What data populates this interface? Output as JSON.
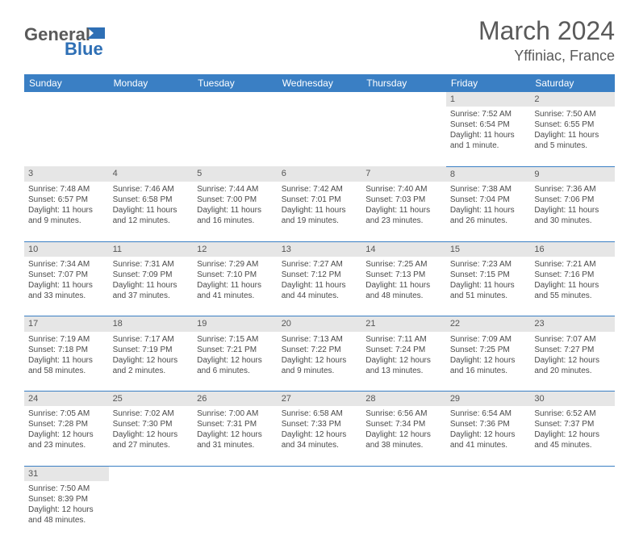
{
  "brand": {
    "word1": "General",
    "word2": "Blue",
    "color1": "#5a5a5a",
    "color2": "#2e6fb5"
  },
  "title": "March 2024",
  "location": "Yffiniac, France",
  "header_bg": "#3a7fc4",
  "cell_divider": "#3a7fc4",
  "daynum_bg": "#e6e6e6",
  "text_color": "#4a4a4a",
  "font_size_title": 32,
  "font_size_location": 18,
  "font_size_header": 12,
  "font_size_cell": 10,
  "days": [
    "Sunday",
    "Monday",
    "Tuesday",
    "Wednesday",
    "Thursday",
    "Friday",
    "Saturday"
  ],
  "weeks": [
    [
      null,
      null,
      null,
      null,
      null,
      {
        "n": "1",
        "sr": "7:52 AM",
        "ss": "6:54 PM",
        "dl": "11 hours and 1 minute."
      },
      {
        "n": "2",
        "sr": "7:50 AM",
        "ss": "6:55 PM",
        "dl": "11 hours and 5 minutes."
      }
    ],
    [
      {
        "n": "3",
        "sr": "7:48 AM",
        "ss": "6:57 PM",
        "dl": "11 hours and 9 minutes."
      },
      {
        "n": "4",
        "sr": "7:46 AM",
        "ss": "6:58 PM",
        "dl": "11 hours and 12 minutes."
      },
      {
        "n": "5",
        "sr": "7:44 AM",
        "ss": "7:00 PM",
        "dl": "11 hours and 16 minutes."
      },
      {
        "n": "6",
        "sr": "7:42 AM",
        "ss": "7:01 PM",
        "dl": "11 hours and 19 minutes."
      },
      {
        "n": "7",
        "sr": "7:40 AM",
        "ss": "7:03 PM",
        "dl": "11 hours and 23 minutes."
      },
      {
        "n": "8",
        "sr": "7:38 AM",
        "ss": "7:04 PM",
        "dl": "11 hours and 26 minutes."
      },
      {
        "n": "9",
        "sr": "7:36 AM",
        "ss": "7:06 PM",
        "dl": "11 hours and 30 minutes."
      }
    ],
    [
      {
        "n": "10",
        "sr": "7:34 AM",
        "ss": "7:07 PM",
        "dl": "11 hours and 33 minutes."
      },
      {
        "n": "11",
        "sr": "7:31 AM",
        "ss": "7:09 PM",
        "dl": "11 hours and 37 minutes."
      },
      {
        "n": "12",
        "sr": "7:29 AM",
        "ss": "7:10 PM",
        "dl": "11 hours and 41 minutes."
      },
      {
        "n": "13",
        "sr": "7:27 AM",
        "ss": "7:12 PM",
        "dl": "11 hours and 44 minutes."
      },
      {
        "n": "14",
        "sr": "7:25 AM",
        "ss": "7:13 PM",
        "dl": "11 hours and 48 minutes."
      },
      {
        "n": "15",
        "sr": "7:23 AM",
        "ss": "7:15 PM",
        "dl": "11 hours and 51 minutes."
      },
      {
        "n": "16",
        "sr": "7:21 AM",
        "ss": "7:16 PM",
        "dl": "11 hours and 55 minutes."
      }
    ],
    [
      {
        "n": "17",
        "sr": "7:19 AM",
        "ss": "7:18 PM",
        "dl": "11 hours and 58 minutes."
      },
      {
        "n": "18",
        "sr": "7:17 AM",
        "ss": "7:19 PM",
        "dl": "12 hours and 2 minutes."
      },
      {
        "n": "19",
        "sr": "7:15 AM",
        "ss": "7:21 PM",
        "dl": "12 hours and 6 minutes."
      },
      {
        "n": "20",
        "sr": "7:13 AM",
        "ss": "7:22 PM",
        "dl": "12 hours and 9 minutes."
      },
      {
        "n": "21",
        "sr": "7:11 AM",
        "ss": "7:24 PM",
        "dl": "12 hours and 13 minutes."
      },
      {
        "n": "22",
        "sr": "7:09 AM",
        "ss": "7:25 PM",
        "dl": "12 hours and 16 minutes."
      },
      {
        "n": "23",
        "sr": "7:07 AM",
        "ss": "7:27 PM",
        "dl": "12 hours and 20 minutes."
      }
    ],
    [
      {
        "n": "24",
        "sr": "7:05 AM",
        "ss": "7:28 PM",
        "dl": "12 hours and 23 minutes."
      },
      {
        "n": "25",
        "sr": "7:02 AM",
        "ss": "7:30 PM",
        "dl": "12 hours and 27 minutes."
      },
      {
        "n": "26",
        "sr": "7:00 AM",
        "ss": "7:31 PM",
        "dl": "12 hours and 31 minutes."
      },
      {
        "n": "27",
        "sr": "6:58 AM",
        "ss": "7:33 PM",
        "dl": "12 hours and 34 minutes."
      },
      {
        "n": "28",
        "sr": "6:56 AM",
        "ss": "7:34 PM",
        "dl": "12 hours and 38 minutes."
      },
      {
        "n": "29",
        "sr": "6:54 AM",
        "ss": "7:36 PM",
        "dl": "12 hours and 41 minutes."
      },
      {
        "n": "30",
        "sr": "6:52 AM",
        "ss": "7:37 PM",
        "dl": "12 hours and 45 minutes."
      }
    ],
    [
      {
        "n": "31",
        "sr": "7:50 AM",
        "ss": "8:39 PM",
        "dl": "12 hours and 48 minutes."
      },
      null,
      null,
      null,
      null,
      null,
      null
    ]
  ],
  "labels": {
    "sunrise": "Sunrise:",
    "sunset": "Sunset:",
    "daylight": "Daylight:"
  }
}
